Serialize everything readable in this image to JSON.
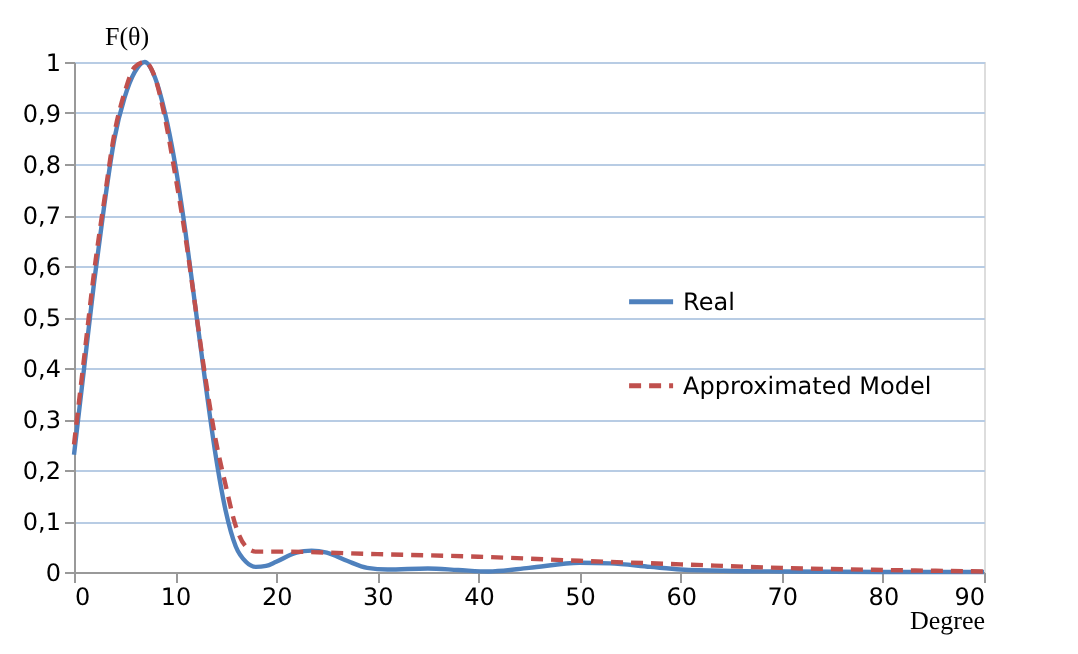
{
  "chart_data": {
    "type": "line",
    "xlabel": "Degree",
    "ylabel": "F(θ)",
    "xlim": [
      0,
      90
    ],
    "xticks": [
      0,
      10,
      20,
      30,
      40,
      50,
      60,
      70,
      80,
      90
    ],
    "ylim": [
      0,
      1
    ],
    "yticks": [
      0,
      {
        "value": 0.1,
        "label": "0,1"
      },
      {
        "value": 0.2,
        "label": "0,2"
      },
      {
        "value": 0.3,
        "label": "0,3"
      },
      {
        "value": 0.4,
        "label": "0,4"
      },
      {
        "value": 0.5,
        "label": "0,5"
      },
      {
        "value": 0.6,
        "label": "0,6"
      },
      {
        "value": 0.7,
        "label": "0,7"
      },
      {
        "value": 0.8,
        "label": "0,8"
      },
      {
        "value": 0.9,
        "label": "0,9"
      },
      1
    ],
    "grid": "y",
    "legend": "right",
    "marker": "none",
    "series": [
      {
        "name": "Real",
        "color": "#4f81bd",
        "line_style": "solid",
        "x": [
          0,
          1,
          2,
          3,
          4,
          5,
          6,
          7,
          8,
          9,
          10,
          11,
          12,
          13,
          14,
          15,
          16,
          17,
          18,
          19,
          20,
          22,
          23.5,
          25,
          27,
          29,
          31,
          35,
          38,
          41,
          45,
          50,
          53,
          57,
          60,
          65,
          70,
          80,
          90
        ],
        "values": [
          0.23,
          0.4,
          0.57,
          0.72,
          0.85,
          0.93,
          0.98,
          1.0,
          0.97,
          0.9,
          0.8,
          0.67,
          0.52,
          0.37,
          0.23,
          0.12,
          0.05,
          0.02,
          0.01,
          0.012,
          0.02,
          0.038,
          0.042,
          0.038,
          0.022,
          0.008,
          0.005,
          0.007,
          0.004,
          0.001,
          0.008,
          0.018,
          0.017,
          0.01,
          0.005,
          0.002,
          0.001,
          0.0,
          0.0
        ]
      },
      {
        "name": "Approximated Model",
        "color": "#c0504d",
        "line_style": "dashed",
        "x": [
          0,
          1,
          2,
          3,
          4,
          5,
          6,
          7,
          8,
          9,
          10,
          11,
          12,
          13,
          14,
          15,
          16,
          17,
          18,
          20,
          30,
          40,
          50,
          60,
          70,
          80,
          90
        ],
        "values": [
          0.25,
          0.42,
          0.59,
          0.73,
          0.86,
          0.94,
          0.99,
          1.0,
          0.97,
          0.89,
          0.78,
          0.66,
          0.52,
          0.38,
          0.26,
          0.17,
          0.09,
          0.05,
          0.04,
          0.04,
          0.035,
          0.03,
          0.022,
          0.015,
          0.008,
          0.004,
          0.001
        ]
      }
    ]
  }
}
